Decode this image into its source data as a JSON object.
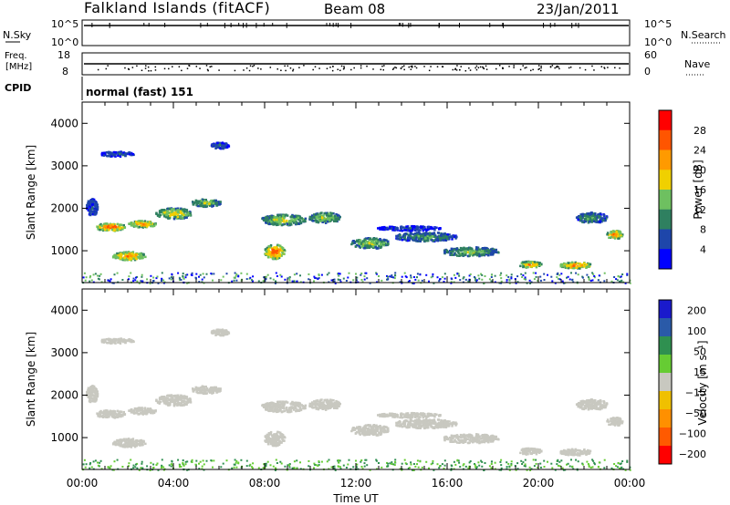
{
  "header": {
    "station": "Falkland Islands (fitACF)",
    "beam": "Beam 08",
    "date": "23/Jan/2011"
  },
  "small_panels": {
    "nsky_label": "N.Sky",
    "nsky_ticks": [
      "10^5",
      "10^0"
    ],
    "nsearch_label": "N.Search",
    "nsearch_ticks": [
      "10^5",
      "10^0"
    ],
    "freq_label": [
      "Freq.",
      "[MHz]"
    ],
    "freq_ticks": [
      "18",
      "8"
    ],
    "nave_label": "Nave",
    "nave_ticks": [
      "60",
      "0"
    ],
    "cpid_label": "CPID",
    "cpid_text": "normal (fast) 151"
  },
  "colors": {
    "power_scale": [
      "#0000ff",
      "#1e46aa",
      "#2f8060",
      "#6ec060",
      "#f0d000",
      "#ff9a00",
      "#ff5500",
      "#ff0000"
    ],
    "velocity_scale": [
      "#1a1acc",
      "#2a5aa8",
      "#2f9050",
      "#66cc33",
      "#c8c8c0",
      "#f0c000",
      "#ff9000",
      "#ff5a00",
      "#ff0000"
    ],
    "ground_scatter": "#c8c8c0"
  },
  "chart_data": [
    {
      "type": "heatmap",
      "name": "power",
      "ylabel": "Slant Range [km]",
      "yticks": [
        "1000",
        "2000",
        "3000",
        "4000"
      ],
      "ylim": [
        250,
        4500
      ],
      "xticks": [
        "00:00",
        "04:00",
        "08:00",
        "12:00",
        "16:00",
        "20:00",
        "00:00"
      ],
      "xlim_hours": [
        0,
        24
      ],
      "colorbar": {
        "label": "Power [dB]",
        "ticks": [
          "4",
          "8",
          "12",
          "16",
          "20",
          "24",
          "28"
        ],
        "range": [
          0,
          32
        ]
      },
      "regions": [
        {
          "t": 1.2,
          "r": 1580,
          "dt": 1.4,
          "dr": 180,
          "v": 27
        },
        {
          "t": 2.6,
          "r": 1650,
          "dt": 1.2,
          "dr": 160,
          "v": 25
        },
        {
          "t": 2.0,
          "r": 900,
          "dt": 1.5,
          "dr": 200,
          "v": 26
        },
        {
          "t": 4.0,
          "r": 1900,
          "dt": 1.6,
          "dr": 260,
          "v": 20
        },
        {
          "t": 5.4,
          "r": 2150,
          "dt": 1.3,
          "dr": 180,
          "v": 17
        },
        {
          "t": 8.4,
          "r": 1000,
          "dt": 0.9,
          "dr": 340,
          "v": 28
        },
        {
          "t": 8.8,
          "r": 1750,
          "dt": 2.0,
          "dr": 250,
          "v": 18
        },
        {
          "t": 10.6,
          "r": 1800,
          "dt": 1.4,
          "dr": 250,
          "v": 17
        },
        {
          "t": 12.6,
          "r": 1200,
          "dt": 1.7,
          "dr": 250,
          "v": 17
        },
        {
          "t": 15.0,
          "r": 1350,
          "dt": 2.8,
          "dr": 220,
          "v": 12
        },
        {
          "t": 17.0,
          "r": 1000,
          "dt": 2.5,
          "dr": 220,
          "v": 15
        },
        {
          "t": 19.6,
          "r": 700,
          "dt": 1.0,
          "dr": 150,
          "v": 25
        },
        {
          "t": 21.6,
          "r": 680,
          "dt": 1.4,
          "dr": 150,
          "v": 26
        },
        {
          "t": 23.3,
          "r": 1400,
          "dt": 0.7,
          "dr": 200,
          "v": 27
        },
        {
          "t": 22.3,
          "r": 1800,
          "dt": 1.4,
          "dr": 250,
          "v": 12
        },
        {
          "t": 1.5,
          "r": 3300,
          "dt": 1.5,
          "dr": 120,
          "v": 8
        },
        {
          "t": 6.0,
          "r": 3500,
          "dt": 0.8,
          "dr": 150,
          "v": 8
        },
        {
          "t": 14.3,
          "r": 1550,
          "dt": 2.8,
          "dr": 110,
          "v": 6
        },
        {
          "t": 0.4,
          "r": 2050,
          "dt": 0.5,
          "dr": 400,
          "v": 8
        }
      ]
    },
    {
      "type": "heatmap",
      "name": "velocity",
      "ylabel": "Slant Range [km]",
      "yticks": [
        "1000",
        "2000",
        "3000",
        "4000"
      ],
      "ylim": [
        250,
        4500
      ],
      "xticks": [
        "00:00",
        "04:00",
        "08:00",
        "12:00",
        "16:00",
        "20:00",
        "00:00"
      ],
      "xlabel": "Time UT",
      "xlim_hours": [
        0,
        24
      ],
      "colorbar": {
        "label": "Velocity [m s⁻¹]",
        "ticks": [
          "200",
          "100",
          "50",
          "15",
          "−15",
          "−50",
          "−100",
          "−200"
        ],
        "range": [
          -250,
          250
        ]
      }
    }
  ]
}
